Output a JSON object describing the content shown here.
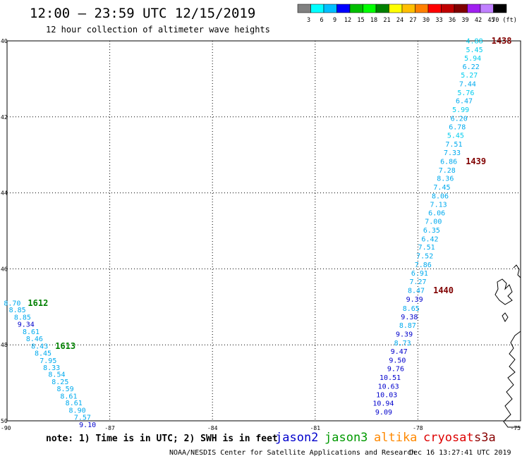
{
  "header": {
    "title": "12:00 – 23:59 UTC 12/15/2019",
    "subtitle": "12 hour collection of altimeter wave heights"
  },
  "color_scale": {
    "colors": [
      "#808080",
      "#00ffff",
      "#00bfff",
      "#0000ff",
      "#00bf00",
      "#00ff00",
      "#008000",
      "#ffff00",
      "#ffbf00",
      "#ff8000",
      "#ff0000",
      "#c00000",
      "#800000",
      "#a020f0",
      "#c080ff",
      "#000000"
    ],
    "labels": [
      "3",
      "6",
      "9",
      "12",
      "15",
      "18",
      "21",
      "24",
      "27",
      "30",
      "33",
      "36",
      "39",
      "42",
      "45",
      "70 (ft)"
    ]
  },
  "axes": {
    "lat_labels": [
      "40",
      "42",
      "44",
      "46",
      "48",
      "50"
    ],
    "lon_labels": [
      "-90",
      "-87",
      "-84",
      "-81",
      "-78",
      "-75"
    ]
  },
  "tracks": [
    {
      "pass_labels": [
        {
          "text": "1438",
          "color": "#800000"
        },
        {
          "text": "1439",
          "color": "#800000"
        },
        {
          "text": "1440",
          "color": "#800000"
        }
      ],
      "observations": [
        {
          "lon": -76.1,
          "lat": 40.0,
          "value": "4.88",
          "color": "#00ccee"
        },
        {
          "lon": -76.1,
          "lat": 40.23,
          "value": "5.45",
          "color": "#00ccee"
        },
        {
          "lon": -76.15,
          "lat": 40.45,
          "value": "5.94",
          "color": "#00ccee"
        },
        {
          "lon": -76.2,
          "lat": 40.68,
          "value": "6.22",
          "color": "#00aaee"
        },
        {
          "lon": -76.25,
          "lat": 40.9,
          "value": "5.27",
          "color": "#00ccee"
        },
        {
          "lon": -76.3,
          "lat": 41.13,
          "value": "7.44",
          "color": "#00aaee"
        },
        {
          "lon": -76.35,
          "lat": 41.36,
          "value": "5.76",
          "color": "#00ccee"
        },
        {
          "lon": -76.4,
          "lat": 41.58,
          "value": "6.47",
          "color": "#00aaee"
        },
        {
          "lon": -76.5,
          "lat": 41.81,
          "value": "5.99",
          "color": "#00ccee"
        },
        {
          "lon": -76.55,
          "lat": 42.04,
          "value": "6.20",
          "color": "#00aaee"
        },
        {
          "lon": -76.6,
          "lat": 42.26,
          "value": "6.78",
          "color": "#00aaee"
        },
        {
          "lon": -76.65,
          "lat": 42.49,
          "value": "5.45",
          "color": "#00ccee"
        },
        {
          "lon": -76.7,
          "lat": 42.72,
          "value": "7.51",
          "color": "#00aaee"
        },
        {
          "lon": -76.75,
          "lat": 42.94,
          "value": "7.33",
          "color": "#00aaee"
        },
        {
          "lon": -76.85,
          "lat": 43.17,
          "value": "6.86",
          "color": "#00aaee"
        },
        {
          "lon": -76.9,
          "lat": 43.4,
          "value": "7.28",
          "color": "#00aaee"
        },
        {
          "lon": -76.95,
          "lat": 43.62,
          "value": "8.36",
          "color": "#00aaee"
        },
        {
          "lon": -77.05,
          "lat": 43.85,
          "value": "7.45",
          "color": "#00aaee"
        },
        {
          "lon": -77.1,
          "lat": 44.08,
          "value": "8.06",
          "color": "#00aaee"
        },
        {
          "lon": -77.15,
          "lat": 44.3,
          "value": "7.13",
          "color": "#00aaee"
        },
        {
          "lon": -77.2,
          "lat": 44.53,
          "value": "6.06",
          "color": "#00aaee"
        },
        {
          "lon": -77.3,
          "lat": 44.75,
          "value": "7.00",
          "color": "#00aaee"
        },
        {
          "lon": -77.35,
          "lat": 44.98,
          "value": "6.35",
          "color": "#00aaee"
        },
        {
          "lon": -77.4,
          "lat": 45.21,
          "value": "6.42",
          "color": "#00aaee"
        },
        {
          "lon": -77.5,
          "lat": 45.43,
          "value": "7.51",
          "color": "#00aaee"
        },
        {
          "lon": -77.55,
          "lat": 45.66,
          "value": "7.52",
          "color": "#00aaee"
        },
        {
          "lon": -77.6,
          "lat": 45.89,
          "value": "7.86",
          "color": "#00aaee"
        },
        {
          "lon": -77.7,
          "lat": 46.11,
          "value": "6.91",
          "color": "#00aaee"
        },
        {
          "lon": -77.75,
          "lat": 46.34,
          "value": "7.27",
          "color": "#00aaee"
        },
        {
          "lon": -77.8,
          "lat": 46.57,
          "value": "8.47",
          "color": "#00aaee"
        },
        {
          "lon": -77.85,
          "lat": 46.8,
          "value": "9.39",
          "color": "#0000cc"
        },
        {
          "lon": -77.95,
          "lat": 47.04,
          "value": "8.65",
          "color": "#00aaee"
        },
        {
          "lon": -78.0,
          "lat": 47.26,
          "value": "9.38",
          "color": "#0000cc"
        },
        {
          "lon": -78.05,
          "lat": 47.49,
          "value": "8.87",
          "color": "#00aaee"
        },
        {
          "lon": -78.15,
          "lat": 47.72,
          "value": "9.39",
          "color": "#0000cc"
        },
        {
          "lon": -78.2,
          "lat": 47.95,
          "value": "8.73",
          "color": "#00aaee"
        },
        {
          "lon": -78.3,
          "lat": 48.17,
          "value": "9.47",
          "color": "#0000cc"
        },
        {
          "lon": -78.35,
          "lat": 48.4,
          "value": "9.50",
          "color": "#0000cc"
        },
        {
          "lon": -78.4,
          "lat": 48.63,
          "value": "9.76",
          "color": "#0000cc"
        },
        {
          "lon": -78.5,
          "lat": 48.86,
          "value": "10.51",
          "color": "#0000cc"
        },
        {
          "lon": -78.55,
          "lat": 49.09,
          "value": "10.63",
          "color": "#0000cc"
        },
        {
          "lon": -78.6,
          "lat": 49.31,
          "value": "10.03",
          "color": "#0000cc"
        },
        {
          "lon": -78.7,
          "lat": 49.54,
          "value": "10.94",
          "color": "#0000cc"
        },
        {
          "lon": -78.75,
          "lat": 49.77,
          "value": "9.09",
          "color": "#0000cc"
        }
      ]
    },
    {
      "pass_labels": [
        {
          "text": "1612",
          "color": "#008000"
        },
        {
          "text": "1613",
          "color": "#008000"
        }
      ],
      "observations": [
        {
          "lon": -89.6,
          "lat": 46.9,
          "value": "8.70",
          "color": "#00aaee"
        },
        {
          "lon": -89.45,
          "lat": 47.08,
          "value": "8.85",
          "color": "#00aaee"
        },
        {
          "lon": -89.3,
          "lat": 47.27,
          "value": "8.85",
          "color": "#00aaee"
        },
        {
          "lon": -89.2,
          "lat": 47.46,
          "value": "9.34",
          "color": "#0000cc"
        },
        {
          "lon": -89.05,
          "lat": 47.65,
          "value": "8.61",
          "color": "#00aaee"
        },
        {
          "lon": -88.95,
          "lat": 47.84,
          "value": "8.46",
          "color": "#00aaee"
        },
        {
          "lon": -88.8,
          "lat": 48.03,
          "value": "8.43",
          "color": "#00aaee"
        },
        {
          "lon": -88.7,
          "lat": 48.22,
          "value": "8.45",
          "color": "#00aaee"
        },
        {
          "lon": -88.55,
          "lat": 48.41,
          "value": "7.95",
          "color": "#00aaee"
        },
        {
          "lon": -88.45,
          "lat": 48.6,
          "value": "8.33",
          "color": "#00aaee"
        },
        {
          "lon": -88.3,
          "lat": 48.78,
          "value": "8.54",
          "color": "#00aaee"
        },
        {
          "lon": -88.2,
          "lat": 48.97,
          "value": "8.25",
          "color": "#00aaee"
        },
        {
          "lon": -88.05,
          "lat": 49.16,
          "value": "8.59",
          "color": "#00aaee"
        },
        {
          "lon": -87.95,
          "lat": 49.35,
          "value": "8.61",
          "color": "#00aaee"
        },
        {
          "lon": -87.8,
          "lat": 49.53,
          "value": "8.61",
          "color": "#00aaee"
        },
        {
          "lon": -87.7,
          "lat": 49.72,
          "value": "8.90",
          "color": "#00aaee"
        },
        {
          "lon": -87.55,
          "lat": 49.91,
          "value": "7.57",
          "color": "#00aaee"
        },
        {
          "lon": -87.4,
          "lat": 50.1,
          "value": "9.10",
          "color": "#0000cc"
        }
      ]
    }
  ],
  "footer": {
    "note": "note:  1) Time is in UTC;  2) SWH is in feet",
    "satellites": [
      {
        "name": "jason2",
        "color": "#0000cc"
      },
      {
        "name": "jason3",
        "color": "#009900"
      },
      {
        "name": "altika",
        "color": "#ff8800"
      },
      {
        "name": "cryosat",
        "color": "#dd0000"
      },
      {
        "name": "s3a",
        "color": "#880000"
      }
    ],
    "credit": "NOAA/NESDIS Center for Satellite Applications and Research",
    "timestamp": "Dec 16 13:27:41 UTC 2019"
  }
}
